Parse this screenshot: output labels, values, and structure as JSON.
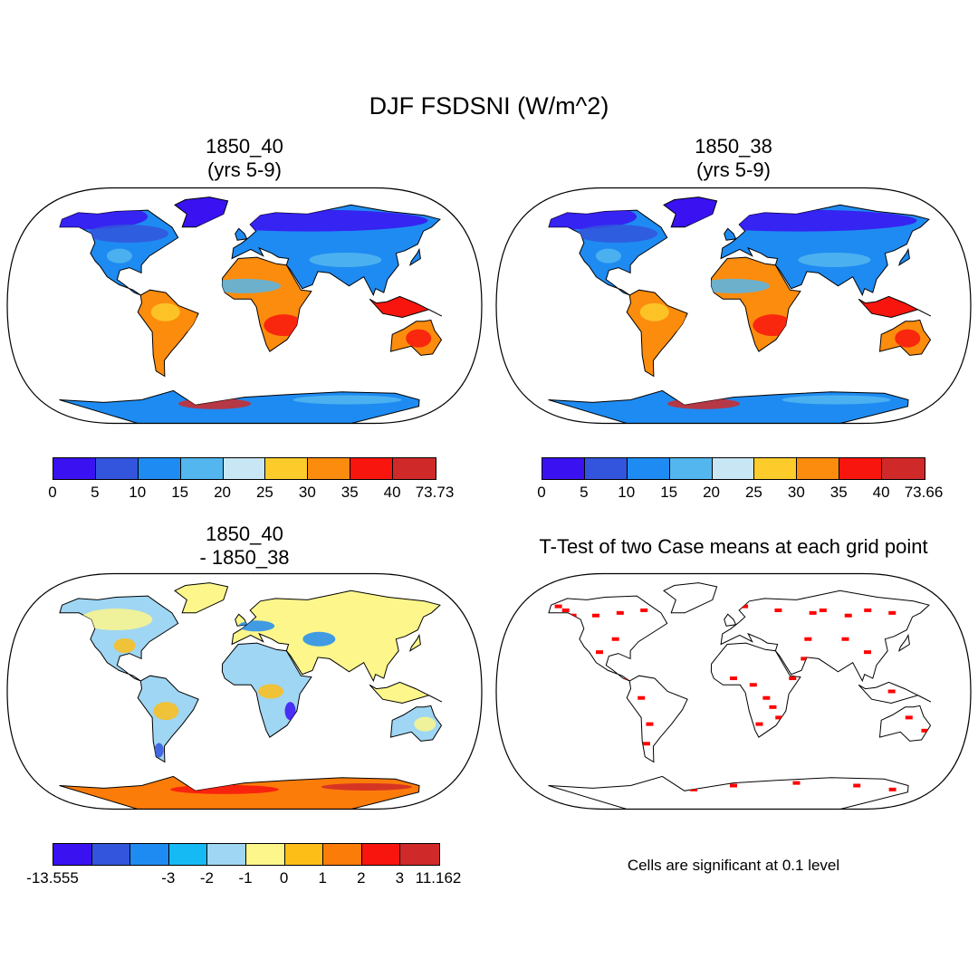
{
  "title": "DJF FSDSNI (W/m^2)",
  "panels": [
    {
      "line1": "1850_40",
      "line2": "(yrs 5-9)"
    },
    {
      "line1": "1850_38",
      "line2": "(yrs 5-9)"
    },
    {
      "line1": "1850_40",
      "line2": "- 1850_38"
    },
    {
      "line1": "T-Test of two Case means at each grid point"
    }
  ],
  "colorbars": {
    "abs1": {
      "colors": [
        "#3a12f2",
        "#3355dd",
        "#1e8bf2",
        "#54b6ee",
        "#c8e6f4",
        "#fdcc2b",
        "#fc8c0d",
        "#f7150e",
        "#d02929"
      ],
      "labels": [
        "0",
        "5",
        "10",
        "15",
        "20",
        "25",
        "30",
        "35",
        "40",
        "73.73"
      ]
    },
    "abs2": {
      "colors": [
        "#3a12f2",
        "#3355dd",
        "#1e8bf2",
        "#54b6ee",
        "#c8e6f4",
        "#fdcc2b",
        "#fc8c0d",
        "#f7150e",
        "#d02929"
      ],
      "labels": [
        "0",
        "5",
        "10",
        "15",
        "20",
        "25",
        "30",
        "35",
        "40",
        "73.66"
      ]
    },
    "diff": {
      "colors": [
        "#3a12f2",
        "#3355dd",
        "#1e8bf2",
        "#15b9f4",
        "#9fd6f3",
        "#fdf78b",
        "#fdbe17",
        "#fc7c0a",
        "#f7150e",
        "#d02929"
      ],
      "labels": [
        "-13.555",
        "-3",
        "-2",
        "-1",
        "0",
        "1",
        "2",
        "3",
        "11.162"
      ]
    }
  },
  "note": "Cells are significant at 0.1 level"
}
